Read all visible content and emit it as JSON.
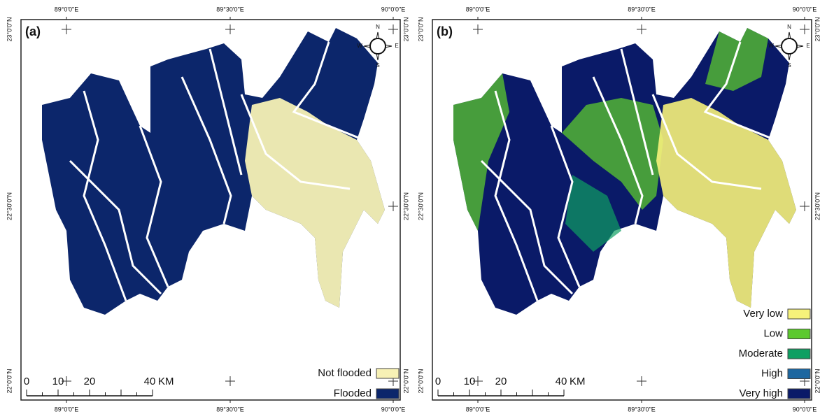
{
  "panels": [
    {
      "label": "(a)",
      "top_labels": [
        "89°0'0\"E",
        "89°30'0\"E",
        "90°0'0\"E"
      ],
      "bottom_labels": [
        "89°0'0\"E",
        "89°30'0\"E",
        "90°0'0\"E"
      ],
      "left_labels": [
        "23°0'0\"N",
        "22°30'0\"N",
        "22°0'0\"N"
      ],
      "right_labels": [
        "23°0'0\"N",
        "22°30'0\"N",
        "22°0'0\"N"
      ],
      "compass": {
        "n": "N",
        "s": "S",
        "e": "E",
        "w": "W"
      },
      "scale": {
        "ticks": [
          "0",
          "10",
          "20",
          "40"
        ],
        "unit": "KM"
      },
      "legend": [
        {
          "label": "Not flooded",
          "color": "#f7f1b5"
        },
        {
          "label": "Flooded",
          "color": "#0c266b"
        }
      ]
    },
    {
      "label": "(b)",
      "top_labels": [
        "89°0'0\"E",
        "89°30'0\"E",
        "90°0'0\"E"
      ],
      "bottom_labels": [
        "89°0'0\"E",
        "89°30'0\"E",
        "90°0'0\"E"
      ],
      "left_labels": [
        "23°0'0\"N",
        "22°30'0\"N",
        "22°0'0\"N"
      ],
      "right_labels": [
        "23°0'0\"N",
        "22°30'0\"N",
        "22°0'0\"N"
      ],
      "compass": {
        "n": "N",
        "s": "S",
        "e": "E",
        "w": "W"
      },
      "scale": {
        "ticks": [
          "0",
          "10",
          "20",
          "40"
        ],
        "unit": "KM"
      },
      "legend": [
        {
          "label": "Very low",
          "color": "#f6f27a"
        },
        {
          "label": "Low",
          "color": "#5cc92e"
        },
        {
          "label": "Moderate",
          "color": "#0e9f62"
        },
        {
          "label": "High",
          "color": "#1d67a0"
        },
        {
          "label": "Very high",
          "color": "#0a1a68"
        }
      ]
    }
  ]
}
